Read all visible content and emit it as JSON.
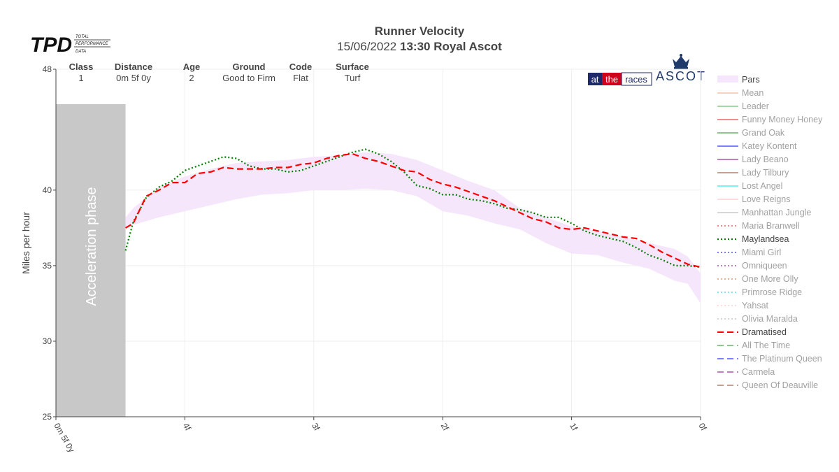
{
  "header": {
    "logo_text": "TPD",
    "logo_sub": [
      "TOTAL",
      "PERFORMANCE",
      "DATA"
    ],
    "title": "Runner Velocity",
    "date": "15/06/2022",
    "race": "13:30 Royal Ascot",
    "brand_atr": [
      "at",
      "the",
      "races"
    ],
    "brand_ascot": "ASCOT"
  },
  "race_info": [
    {
      "label": "Class",
      "value": "1"
    },
    {
      "label": "Distance",
      "value": "0m 5f 0y"
    },
    {
      "label": "Age",
      "value": "2"
    },
    {
      "label": "Ground",
      "value": "Good to Firm"
    },
    {
      "label": "Code",
      "value": "Flat"
    },
    {
      "label": "Surface",
      "value": "Turf"
    }
  ],
  "chart_data": {
    "type": "line",
    "ylabel": "Miles per hour",
    "ylim": [
      25,
      48
    ],
    "yticks": [
      25,
      30,
      35,
      40,
      48
    ],
    "xlim": [
      0,
      5
    ],
    "x_ticks": [
      {
        "x": 0,
        "label": "0m 5f 0y"
      },
      {
        "x": 1,
        "label": "4f"
      },
      {
        "x": 2,
        "label": "3f"
      },
      {
        "x": 3,
        "label": "2f"
      },
      {
        "x": 4,
        "label": "1f"
      },
      {
        "x": 5,
        "label": "0f"
      }
    ],
    "acceleration_phase": {
      "label": "Acceleration phase",
      "x_end": 0.54
    },
    "pars_band": {
      "x": [
        0.54,
        0.6,
        0.8,
        1.0,
        1.2,
        1.4,
        1.6,
        1.8,
        2.0,
        2.2,
        2.4,
        2.6,
        2.8,
        3.0,
        3.2,
        3.4,
        3.6,
        3.8,
        4.0,
        4.2,
        4.4,
        4.6,
        4.8,
        4.9,
        5.0
      ],
      "lower": [
        37.6,
        37.7,
        38.2,
        38.6,
        39.0,
        39.4,
        39.7,
        39.8,
        40.0,
        40.0,
        40.1,
        40.0,
        39.6,
        38.6,
        38.3,
        37.8,
        37.4,
        36.5,
        35.8,
        35.7,
        35.2,
        34.8,
        34.0,
        33.8,
        32.5
      ],
      "upper": [
        38.2,
        38.8,
        40.2,
        40.9,
        41.4,
        41.8,
        41.9,
        42.0,
        42.2,
        42.3,
        42.5,
        42.4,
        42.0,
        41.3,
        40.6,
        40.0,
        38.8,
        38.2,
        37.6,
        37.3,
        36.9,
        36.5,
        36.1,
        35.6,
        34.5
      ]
    },
    "series": [
      {
        "name": "Maylandsea",
        "color": "#008000",
        "dash": "dot",
        "x": [
          0.54,
          0.6,
          0.7,
          0.8,
          0.9,
          1.0,
          1.1,
          1.2,
          1.3,
          1.4,
          1.5,
          1.6,
          1.7,
          1.8,
          1.9,
          2.0,
          2.1,
          2.2,
          2.3,
          2.4,
          2.5,
          2.6,
          2.7,
          2.8,
          2.9,
          3.0,
          3.1,
          3.2,
          3.3,
          3.4,
          3.5,
          3.6,
          3.7,
          3.8,
          3.9,
          4.0,
          4.1,
          4.2,
          4.3,
          4.4,
          4.5,
          4.6,
          4.7,
          4.8,
          4.9,
          5.0
        ],
        "y": [
          36.0,
          37.9,
          39.5,
          40.2,
          40.6,
          41.3,
          41.6,
          41.9,
          42.2,
          42.1,
          41.6,
          41.4,
          41.4,
          41.2,
          41.3,
          41.6,
          41.9,
          42.2,
          42.5,
          42.7,
          42.4,
          41.9,
          41.2,
          40.3,
          40.1,
          39.7,
          39.7,
          39.4,
          39.3,
          39.1,
          38.8,
          38.7,
          38.5,
          38.2,
          38.2,
          37.8,
          37.3,
          37.0,
          36.8,
          36.6,
          36.2,
          35.7,
          35.4,
          35.0,
          35.0,
          34.9
        ]
      },
      {
        "name": "Dramatised",
        "color": "#ff0000",
        "dash": "dash",
        "x": [
          0.54,
          0.6,
          0.7,
          0.8,
          0.9,
          1.0,
          1.1,
          1.2,
          1.3,
          1.4,
          1.5,
          1.6,
          1.7,
          1.8,
          1.9,
          2.0,
          2.1,
          2.2,
          2.3,
          2.4,
          2.5,
          2.6,
          2.7,
          2.8,
          2.9,
          3.0,
          3.1,
          3.2,
          3.3,
          3.4,
          3.5,
          3.6,
          3.7,
          3.8,
          3.9,
          4.0,
          4.1,
          4.2,
          4.3,
          4.4,
          4.5,
          4.6,
          4.7,
          4.8,
          4.9,
          5.0
        ],
        "y": [
          37.5,
          37.8,
          39.6,
          40.0,
          40.5,
          40.5,
          41.1,
          41.2,
          41.5,
          41.4,
          41.4,
          41.4,
          41.5,
          41.5,
          41.7,
          41.8,
          42.1,
          42.3,
          42.4,
          42.1,
          41.9,
          41.6,
          41.3,
          41.2,
          40.7,
          40.4,
          40.2,
          39.9,
          39.6,
          39.3,
          38.9,
          38.5,
          38.1,
          37.9,
          37.5,
          37.4,
          37.5,
          37.3,
          37.1,
          36.9,
          36.8,
          36.4,
          35.9,
          35.5,
          35.1,
          34.9
        ]
      }
    ],
    "legend": [
      {
        "name": "Pars",
        "color": "#f6e6fb",
        "dash": "band",
        "active": true
      },
      {
        "name": "Mean",
        "color": "#f4a582",
        "dash": "solid",
        "active": false
      },
      {
        "name": "Leader",
        "color": "#4daf4a",
        "dash": "solid",
        "active": false
      },
      {
        "name": "Funny Money Honey",
        "color": "#e41a1c",
        "dash": "solid",
        "active": false
      },
      {
        "name": "Grand Oak",
        "color": "#228b22",
        "dash": "solid",
        "active": false
      },
      {
        "name": "Katey Kontent",
        "color": "#0000ff",
        "dash": "solid",
        "active": false
      },
      {
        "name": "Lady Beano",
        "color": "#800080",
        "dash": "solid",
        "active": false
      },
      {
        "name": "Lady Tilbury",
        "color": "#8b4513",
        "dash": "solid",
        "active": false
      },
      {
        "name": "Lost Angel",
        "color": "#00e5ee",
        "dash": "solid",
        "active": false
      },
      {
        "name": "Love Reigns",
        "color": "#ffb6c1",
        "dash": "solid",
        "active": false
      },
      {
        "name": "Manhattan Jungle",
        "color": "#b0b0b0",
        "dash": "solid",
        "active": false
      },
      {
        "name": "Maria Branwell",
        "color": "#e41a1c",
        "dash": "dot",
        "active": false
      },
      {
        "name": "Maylandsea",
        "color": "#008000",
        "dash": "dot",
        "active": true
      },
      {
        "name": "Miami Girl",
        "color": "#0000cd",
        "dash": "dot",
        "active": false
      },
      {
        "name": "Omniqueen",
        "color": "#800080",
        "dash": "dot",
        "active": false
      },
      {
        "name": "One More Olly",
        "color": "#d2691e",
        "dash": "dot",
        "active": false
      },
      {
        "name": "Primrose Ridge",
        "color": "#00ced1",
        "dash": "dot",
        "active": false
      },
      {
        "name": "Yahsat",
        "color": "#ffb6c1",
        "dash": "dot",
        "active": false
      },
      {
        "name": "Olivia Maralda",
        "color": "#a9a9a9",
        "dash": "dot",
        "active": false
      },
      {
        "name": "Dramatised",
        "color": "#ff0000",
        "dash": "dash",
        "active": true
      },
      {
        "name": "All The Time",
        "color": "#228b22",
        "dash": "dash",
        "active": false
      },
      {
        "name": "The Platinum Queen",
        "color": "#0000ff",
        "dash": "dash",
        "active": false
      },
      {
        "name": "Carmela",
        "color": "#800080",
        "dash": "dash",
        "active": false
      },
      {
        "name": "Queen Of Deauville",
        "color": "#8b4513",
        "dash": "dash",
        "active": false
      }
    ]
  }
}
